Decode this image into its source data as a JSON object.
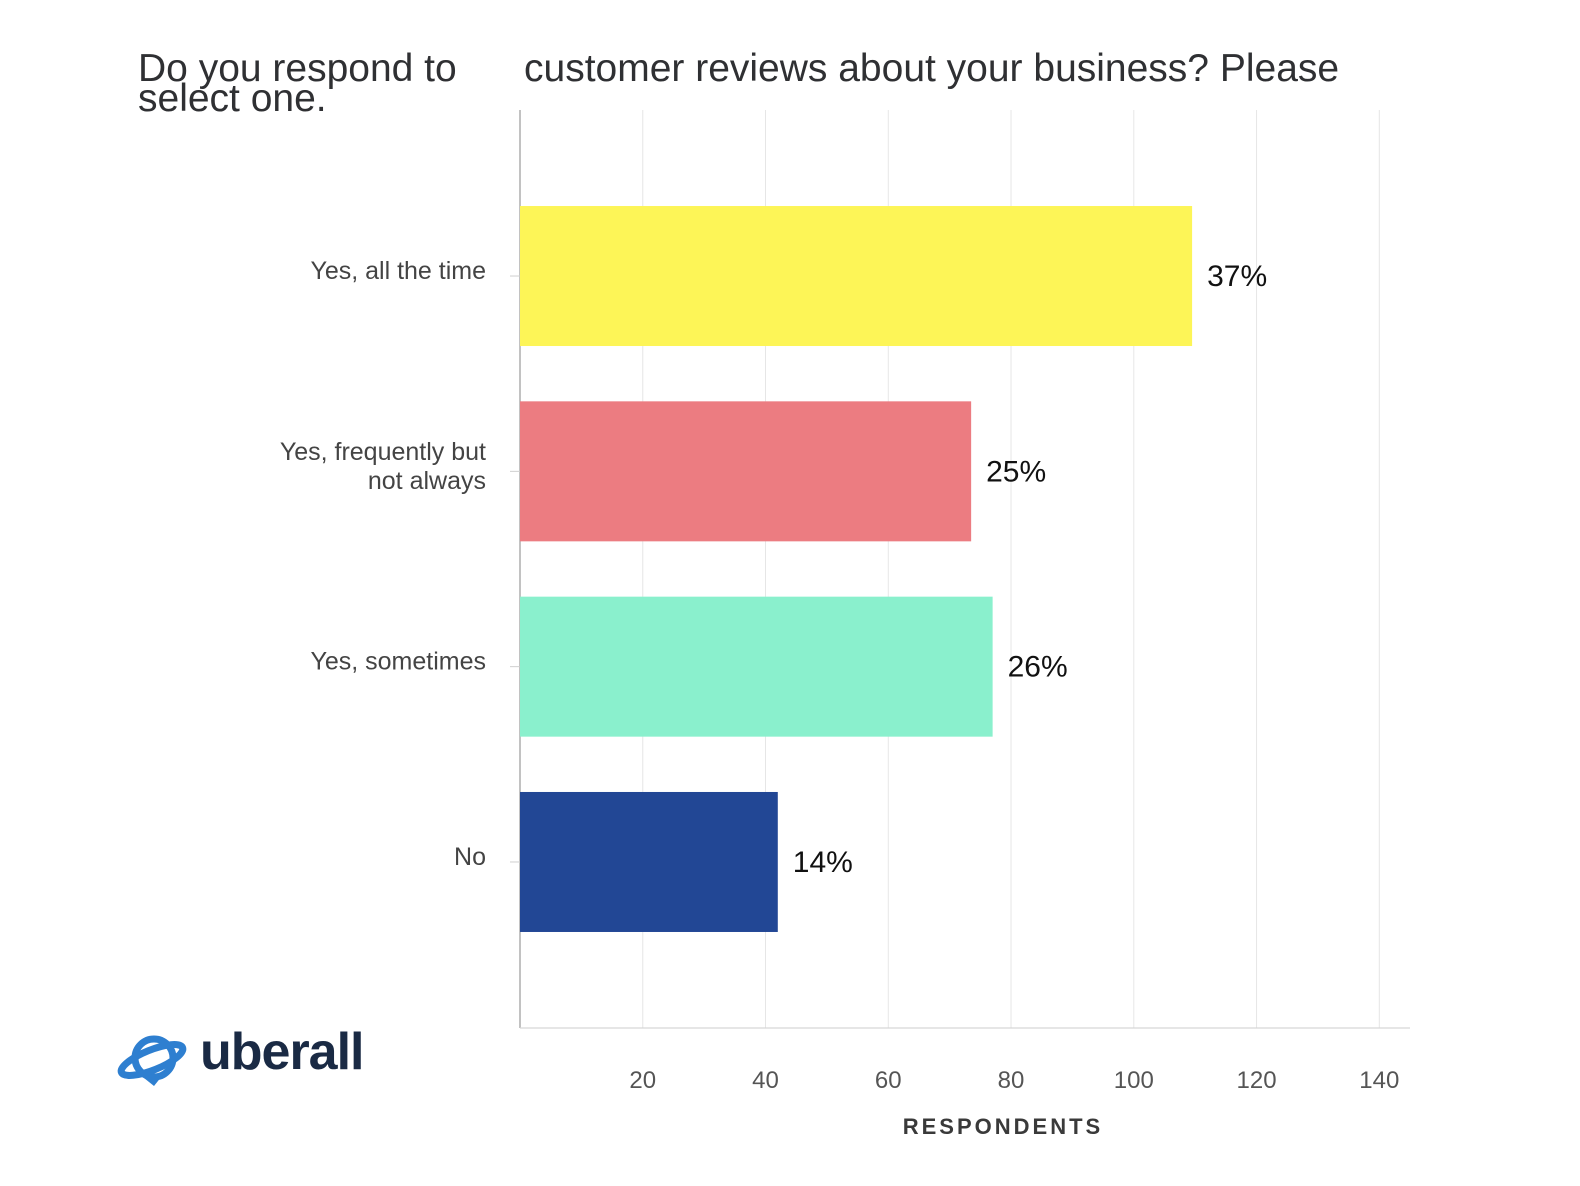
{
  "title": {
    "part1": "Do you respond to",
    "part2": "customer reviews about your business? Please",
    "part3": "select one."
  },
  "chart_data": {
    "type": "bar",
    "orientation": "horizontal",
    "categories": [
      "Yes, all the time",
      "Yes, frequently but not always",
      "Yes, sometimes",
      "No"
    ],
    "category_lines": [
      [
        "Yes, all the time"
      ],
      [
        "Yes, frequently but",
        "not always"
      ],
      [
        "Yes, sometimes"
      ],
      [
        "No"
      ]
    ],
    "values": [
      109.5,
      73.5,
      77,
      42
    ],
    "data_labels": [
      "37%",
      "25%",
      "26%",
      "14%"
    ],
    "colors": [
      "#fdf557",
      "#ec7c81",
      "#8af0cd",
      "#224795"
    ],
    "xlabel": "RESPONDENTS",
    "ylabel": "",
    "xlim": [
      0,
      145
    ],
    "xticks": [
      20,
      40,
      60,
      80,
      100,
      120,
      140
    ],
    "grid": true
  },
  "logo": {
    "text": "uberall",
    "icon": "planet-icon",
    "color": "#1a2a44",
    "accent": "#2e7fd0"
  }
}
